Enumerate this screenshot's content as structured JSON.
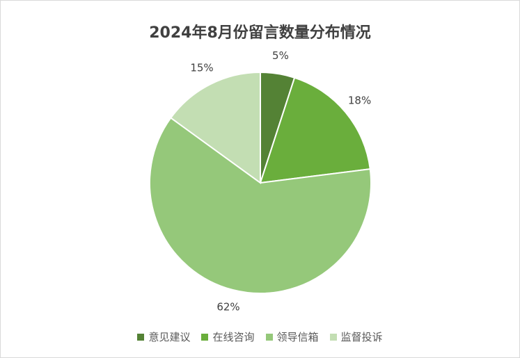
{
  "chart_data": {
    "type": "pie",
    "title": "2024年8月份留言数量分布情况",
    "categories": [
      "意见建议",
      "在线咨询",
      "领导信箱",
      "监督投诉"
    ],
    "values": [
      5,
      18,
      62,
      15
    ],
    "labels": [
      "5%",
      "18%",
      "62%",
      "15%"
    ],
    "colors": [
      "#548235",
      "#6aae3c",
      "#95c87a",
      "#c3deb3"
    ],
    "legend_position": "bottom",
    "start_angle_deg": 0,
    "direction": "clockwise"
  }
}
